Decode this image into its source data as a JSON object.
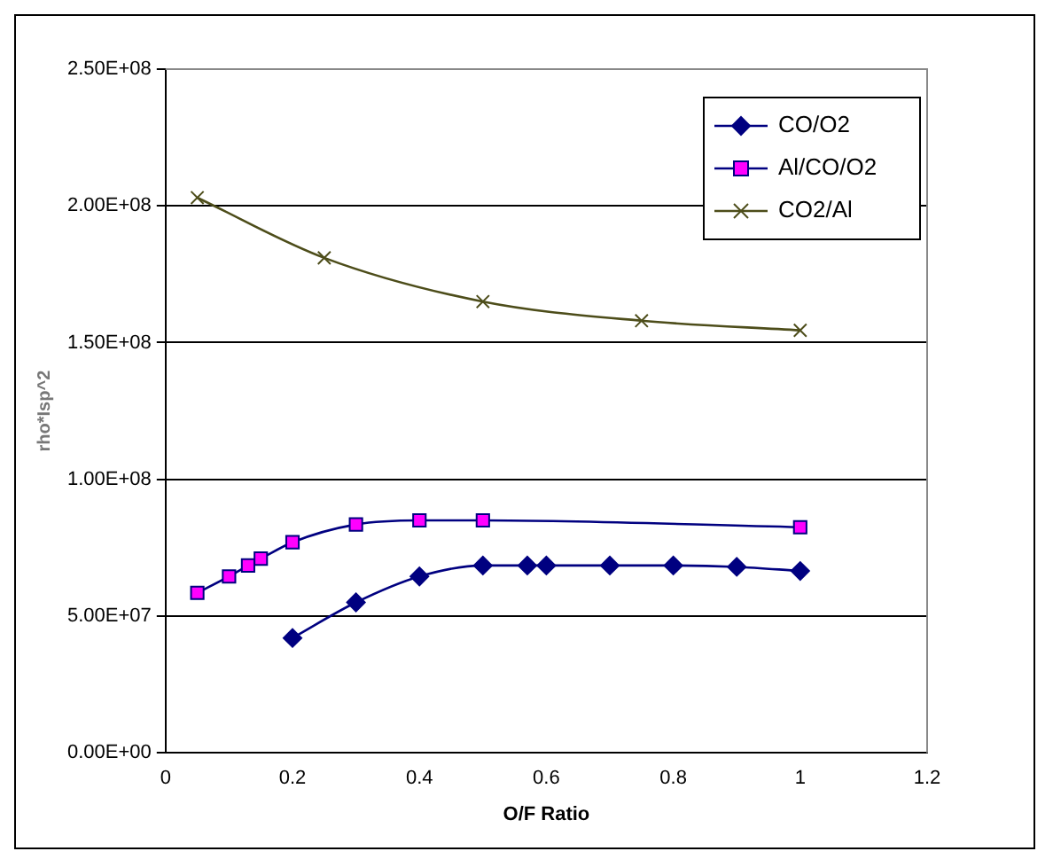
{
  "chart_data": {
    "type": "line",
    "xlabel": "O/F Ratio",
    "ylabel": "rho*Isp^2",
    "xlim": [
      0,
      1.2
    ],
    "xticks": [
      0,
      0.2,
      0.4,
      0.6,
      0.8,
      1,
      1.2
    ],
    "ylim": [
      0,
      250000000
    ],
    "yticks": [
      {
        "value": 0,
        "label": "0.00E+00"
      },
      {
        "value": 50000000,
        "label": "5.00E+07"
      },
      {
        "value": 100000000,
        "label": "1.00E+08"
      },
      {
        "value": 150000000,
        "label": "1.50E+08"
      },
      {
        "value": 200000000,
        "label": "2.00E+08"
      },
      {
        "value": 250000000,
        "label": "2.50E+08"
      }
    ],
    "grid": "y",
    "legend": "top right",
    "series": [
      {
        "name": "CO/O2",
        "color": "#000080",
        "marker": "diamond",
        "x": [
          0.2,
          0.3,
          0.4,
          0.5,
          0.57,
          0.6,
          0.7,
          0.8,
          0.9,
          1.0
        ],
        "values": [
          42000000,
          55000000,
          64500000,
          68500000,
          68500000,
          68500000,
          68500000,
          68500000,
          68000000,
          66500000
        ]
      },
      {
        "name": "Al/CO/O2",
        "color": "#ff00ff",
        "marker": "square",
        "x": [
          0.05,
          0.1,
          0.13,
          0.15,
          0.2,
          0.3,
          0.4,
          0.5,
          1.0
        ],
        "values": [
          58500000,
          64500000,
          68500000,
          71000000,
          77000000,
          83500000,
          85000000,
          85000000,
          82500000
        ]
      },
      {
        "name": "CO2/Al",
        "color": "#4d4d1a",
        "marker": "cross",
        "x": [
          0.05,
          0.25,
          0.5,
          0.75,
          1.0
        ],
        "values": [
          203000000,
          181000000,
          165000000,
          158000000,
          154500000
        ]
      }
    ]
  }
}
